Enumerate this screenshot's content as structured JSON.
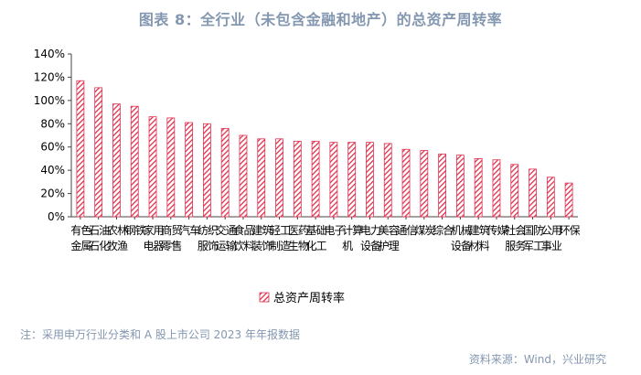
{
  "title": "图表 8：全行业（未包含金融和地产）的总资产周转率",
  "note": "注：采用申万行业分类和 A 股上市公司 2023 年年报数据",
  "source": "资料来源：Wind，兴业研究",
  "colors": {
    "bar": "#e0304e",
    "axis": "#444444",
    "text": "#000000",
    "meta": "#8497b0"
  },
  "chart_data": {
    "type": "bar",
    "pattern": "diagonal-hatch",
    "title": "",
    "xlabel": "",
    "ylabel": "",
    "ylim": [
      0,
      140
    ],
    "yticks": [
      0,
      20,
      40,
      60,
      80,
      100,
      120,
      140
    ],
    "ytick_labels": [
      "0%",
      "20%",
      "40%",
      "60%",
      "80%",
      "100%",
      "120%",
      "140%"
    ],
    "grid": false,
    "legend_position": "bottom-center",
    "categories": [
      "有色金属",
      "石油石化",
      "农林牧渔",
      "钢铁",
      "家用电器",
      "商贸零售",
      "汽车",
      "纺织服饰",
      "交通运输",
      "食品饮料",
      "建筑装饰",
      "轻工制造",
      "医药生物",
      "基础化工",
      "电子",
      "计算机",
      "电力设备",
      "美容护理",
      "通信",
      "煤炭",
      "综合",
      "机械设备",
      "建筑材料",
      "传媒",
      "社会服务",
      "国防军工",
      "公用事业",
      "环保"
    ],
    "series": [
      {
        "name": "总资产周转率",
        "values": [
          117,
          111,
          97,
          95,
          86,
          85,
          81,
          80,
          76,
          70,
          67,
          67,
          65,
          65,
          64,
          64,
          64,
          63,
          58,
          57,
          54,
          53,
          50,
          49,
          45,
          41,
          34,
          29
        ]
      }
    ]
  }
}
